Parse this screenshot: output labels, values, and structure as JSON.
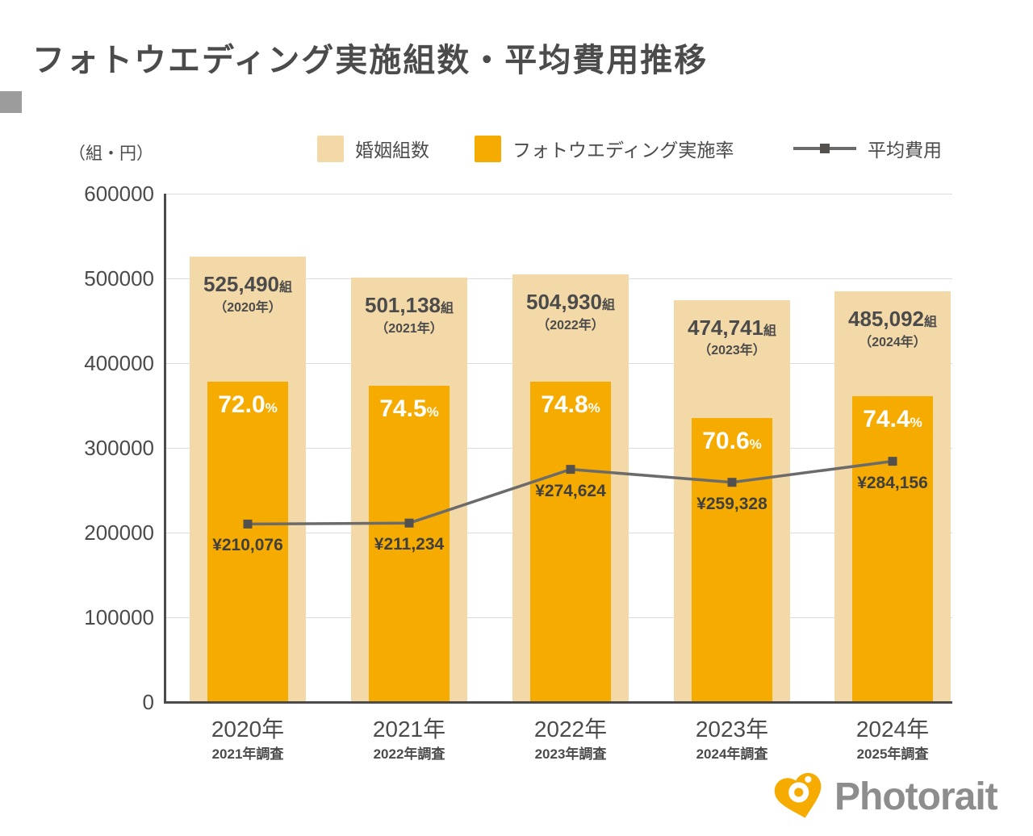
{
  "title": "フォトウエディング実施組数・平均費用推移",
  "unit_label": "（組・円）",
  "legend": {
    "marriages": "婚姻組数",
    "rate": "フォトウエディング実施率",
    "cost": "平均費用"
  },
  "colors": {
    "beige": "#f3d9a7",
    "orange": "#f6ab00",
    "line": "#6b6b6b",
    "marker": "#54504d",
    "text": "#4b4b4b",
    "grid": "#dcdcdc",
    "tab": "#9c9c9c",
    "logo_text": "#8d8d8d"
  },
  "chart_data": {
    "type": "bar+line",
    "categories": [
      "2020年",
      "2021年",
      "2022年",
      "2023年",
      "2024年"
    ],
    "survey_labels": [
      "2021年調査",
      "2022年調査",
      "2023年調査",
      "2024年調査",
      "2025年調査"
    ],
    "count_suffix": "組",
    "percent_suffix": "%",
    "series": [
      {
        "name": "婚姻組数",
        "type": "bar",
        "values": [
          525490,
          501138,
          504930,
          474741,
          485092
        ],
        "labels": [
          "525,490",
          "501,138",
          "504,930",
          "474,741",
          "485,092"
        ],
        "year_labels": [
          "（2020年）",
          "（2021年）",
          "（2022年）",
          "（2023年）",
          "（2024年）"
        ]
      },
      {
        "name": "フォトウエディング実施率",
        "type": "bar",
        "percent": [
          72.0,
          74.5,
          74.8,
          70.6,
          74.4
        ],
        "labels": [
          "72.0",
          "74.5",
          "74.8",
          "70.6",
          "74.4"
        ]
      },
      {
        "name": "平均費用",
        "type": "line",
        "values": [
          210076,
          211234,
          274624,
          259328,
          284156
        ],
        "labels": [
          "¥210,076",
          "¥211,234",
          "¥274,624",
          "¥259,328",
          "¥284,156"
        ]
      }
    ],
    "ylim": [
      0,
      600000
    ],
    "yticks": [
      0,
      100000,
      200000,
      300000,
      400000,
      500000,
      600000
    ],
    "grid": true,
    "legend_position": "top"
  },
  "logo": {
    "text": "Photorait"
  }
}
